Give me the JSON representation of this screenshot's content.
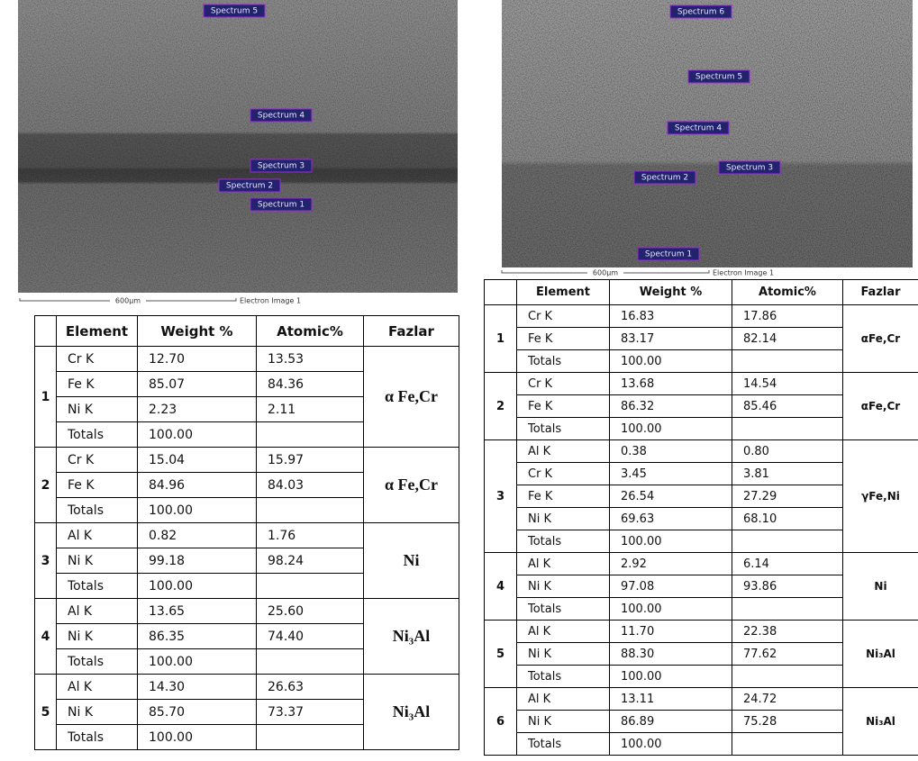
{
  "left": {
    "image": {
      "labels": [
        "Spectrum 5",
        "Spectrum 4",
        "Spectrum 3",
        "Spectrum 2",
        "Spectrum 1"
      ],
      "scale": "600µm",
      "caption": "Electron Image 1"
    },
    "table": {
      "header": [
        "Element",
        "Weight %",
        "Atomic%",
        "Fazlar"
      ],
      "groups": [
        {
          "id": "1",
          "phase": "α Fe,Cr",
          "rows": [
            [
              "Cr K",
              "12.70",
              "13.53"
            ],
            [
              "Fe K",
              "85.07",
              "84.36"
            ],
            [
              "Ni K",
              "2.23",
              "2.11"
            ],
            [
              "Totals",
              "100.00"
            ]
          ]
        },
        {
          "id": "2",
          "phase": "α Fe,Cr",
          "rows": [
            [
              "Cr K",
              "15.04",
              "15.97"
            ],
            [
              "Fe K",
              "84.96",
              "84.03"
            ],
            [
              "Totals",
              "100.00"
            ]
          ]
        },
        {
          "id": "3",
          "phase": "Ni",
          "rows": [
            [
              "Al K",
              "0.82",
              "1.76"
            ],
            [
              "Ni K",
              "99.18",
              "98.24"
            ],
            [
              "Totals",
              "100.00"
            ]
          ]
        },
        {
          "id": "4",
          "phase": "Ni₃Al",
          "rows": [
            [
              "Al K",
              "13.65",
              "25.60"
            ],
            [
              "Ni K",
              "86.35",
              "74.40"
            ],
            [
              "Totals",
              "100.00"
            ]
          ]
        },
        {
          "id": "5",
          "phase": "Ni₃Al",
          "rows": [
            [
              "Al K",
              "14.30",
              "26.63"
            ],
            [
              "Ni K",
              "85.70",
              "73.37"
            ],
            [
              "Totals",
              "100.00"
            ]
          ]
        }
      ]
    }
  },
  "right": {
    "image": {
      "labels": [
        "Spectrum 6",
        "Spectrum 5",
        "Spectrum 4",
        "Spectrum 3",
        "Spectrum 2",
        "Spectrum 1"
      ],
      "scale": "600µm",
      "caption": "Electron Image 1"
    },
    "table": {
      "header": [
        "Element",
        "Weight %",
        "Atomic%",
        "Fazlar"
      ],
      "groups": [
        {
          "id": "1",
          "phase": "αFe,Cr",
          "rows": [
            [
              "Cr K",
              "16.83",
              "17.86"
            ],
            [
              "Fe K",
              "83.17",
              "82.14"
            ],
            [
              "Totals",
              "100.00"
            ]
          ]
        },
        {
          "id": "2",
          "phase": "αFe,Cr",
          "rows": [
            [
              "Cr K",
              "13.68",
              "14.54"
            ],
            [
              "Fe K",
              "86.32",
              "85.46"
            ],
            [
              "Totals",
              "100.00"
            ]
          ]
        },
        {
          "id": "3",
          "phase": "γFe,Ni",
          "rows": [
            [
              "Al K",
              "0.38",
              "0.80"
            ],
            [
              "Cr K",
              "3.45",
              "3.81"
            ],
            [
              "Fe K",
              "26.54",
              "27.29"
            ],
            [
              "Ni K",
              "69.63",
              "68.10"
            ],
            [
              "Totals",
              "100.00"
            ]
          ]
        },
        {
          "id": "4",
          "phase": "Ni",
          "rows": [
            [
              "Al K",
              "2.92",
              "6.14"
            ],
            [
              "Ni K",
              "97.08",
              "93.86"
            ],
            [
              "Totals",
              "100.00"
            ]
          ]
        },
        {
          "id": "5",
          "phase": "Ni₃Al",
          "rows": [
            [
              "Al K",
              "11.70",
              "22.38"
            ],
            [
              "Ni K",
              "88.30",
              "77.62"
            ],
            [
              "Totals",
              "100.00"
            ]
          ]
        },
        {
          "id": "6",
          "phase": "Ni₃Al",
          "rows": [
            [
              "Al K",
              "13.11",
              "24.72"
            ],
            [
              "Ni K",
              "86.89",
              "75.28"
            ],
            [
              "Totals",
              "100.00"
            ]
          ]
        }
      ]
    }
  }
}
